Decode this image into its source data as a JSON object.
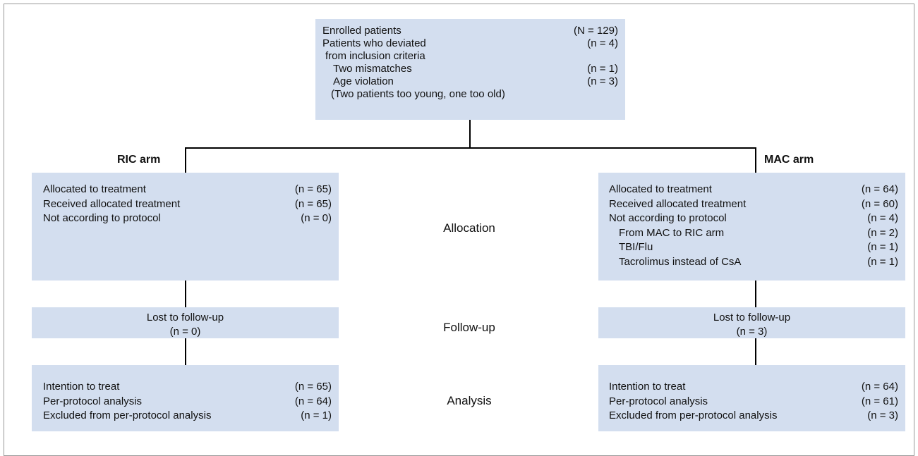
{
  "enrollment": {
    "rows": [
      {
        "label": "Enrolled patients",
        "count": "(N = 129)"
      },
      {
        "label": "Patients who deviated",
        "count": "(n = 4)"
      },
      {
        "label": "from inclusion criteria"
      },
      {
        "label": "Two mismatches",
        "count": "(n = 1)"
      },
      {
        "label": "Age violation",
        "count": "(n = 3)"
      },
      {
        "label": "(Two patients too young, one too old)"
      }
    ]
  },
  "arms": [
    {
      "title": "RIC arm",
      "allocation": {
        "rows": [
          {
            "label": "Allocated to treatment",
            "count": "(n = 65)"
          },
          {
            "label": "Received allocated treatment",
            "count": "(n = 65)"
          },
          {
            "label": "Not according to protocol",
            "count": "(n = 0)"
          }
        ]
      },
      "follow_up": {
        "label": "Lost to follow-up",
        "count": "(n = 0)"
      },
      "analysis": {
        "rows": [
          {
            "label": "Intention to treat",
            "count": "(n = 65)"
          },
          {
            "label": "Per-protocol analysis",
            "count": "(n = 64)"
          },
          {
            "label": "Excluded from per-protocol analysis",
            "count": "(n = 1)"
          }
        ]
      }
    },
    {
      "title": "MAC arm",
      "allocation": {
        "rows": [
          {
            "label": "Allocated to treatment",
            "count": "(n = 64)"
          },
          {
            "label": "Received allocated treatment",
            "count": "(n = 60)"
          },
          {
            "label": "Not according to protocol",
            "count": "(n = 4)"
          },
          {
            "label": "From MAC to RIC arm",
            "count": "(n = 2)"
          },
          {
            "label": "TBI/Flu",
            "count": "(n = 1)"
          },
          {
            "label": "Tacrolimus instead of CsA",
            "count": "(n = 1)"
          }
        ]
      },
      "follow_up": {
        "label": "Lost to follow-up",
        "count": "(n = 3)"
      },
      "analysis": {
        "rows": [
          {
            "label": "Intention to treat",
            "count": "(n = 64)"
          },
          {
            "label": "Per-protocol analysis",
            "count": "(n = 61)"
          },
          {
            "label": "Excluded from per-protocol analysis",
            "count": "(n = 3)"
          }
        ]
      }
    }
  ],
  "stages": [
    "Allocation",
    "Follow-up",
    "Analysis"
  ]
}
